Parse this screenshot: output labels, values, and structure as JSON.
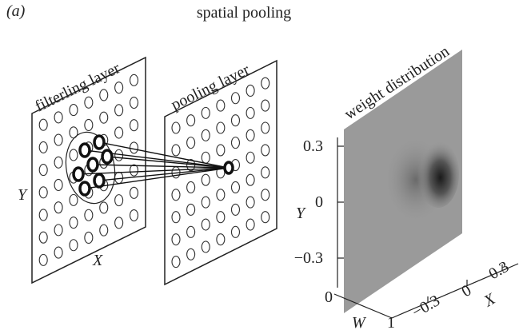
{
  "panel_label": "(a)",
  "title": "spatial pooling",
  "filtering_layer": {
    "label": "filterling layer",
    "y_axis": "Y",
    "x_axis": "X"
  },
  "pooling_layer": {
    "label": "pooling layer"
  },
  "weight_plot": {
    "label": "weight distribution",
    "y_axis_label": "Y",
    "y_ticks": [
      "0.3",
      "0",
      "−0.3"
    ],
    "w_axis_label": "W",
    "w_ticks": [
      "0",
      "1"
    ],
    "x_axis_label": "X",
    "x_ticks": [
      "−0.3",
      "0",
      "0.3"
    ]
  }
}
